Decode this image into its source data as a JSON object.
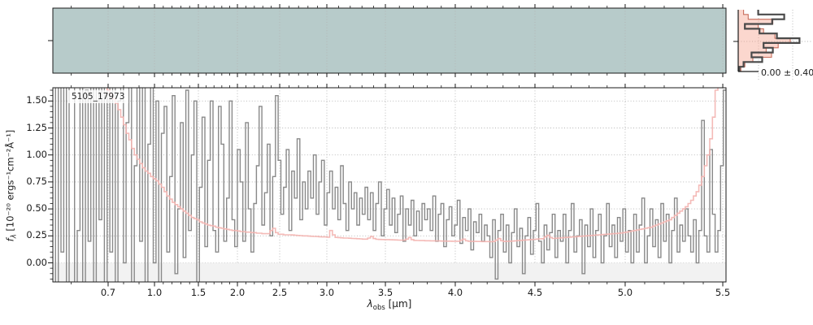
{
  "figure": {
    "annotation_id": "5105_17973",
    "hist_annotation": "0.00 ± 0.40",
    "xlabel": {
      "prefix": "λ",
      "sub": "obs",
      "unit": " [μm]"
    },
    "ylabel": {
      "prefix": "f",
      "sub": "λ",
      "rest": " [10⁻²⁰ ergs⁻¹cm⁻²Å⁻¹]"
    }
  },
  "colors": {
    "panel2d_background": "#b7cbca",
    "spectrum_gray": "#898989",
    "error_pink": "#f3b3af",
    "profile_dark": "#4a4a4a",
    "profile_fill": "#f6a692",
    "profile_outline": "#c2604e",
    "gridline": "#b3b3b3",
    "below_zero_shade": "#f2f2f2",
    "spine": "#1a1a1a"
  },
  "chart_data": [
    {
      "type": "heatmap",
      "name": "2d-spectrum-cutout",
      "description": "Rectified 2D spectrum noise image on teal background, grayscale speckle, higher contrast at blue end, faint dark trace band along center",
      "x_ticks": [
        0.7,
        1.0,
        1.5,
        2.0,
        2.5,
        3.0,
        3.5,
        4.0,
        4.5,
        5.0,
        5.5
      ],
      "grid": "dotted vertical at major ticks"
    },
    {
      "type": "line",
      "name": "1d-spectrum",
      "annotation": "5105_17973",
      "xlabel": "λ_obs [μm]",
      "ylabel": "f_λ [10^-20 ergs^-1 cm^-2 Å^-1]",
      "x_ticks": [
        0.7,
        1.0,
        1.5,
        2.0,
        2.5,
        3.0,
        3.5,
        4.0,
        4.5,
        5.0,
        5.5
      ],
      "x_tick_labels": [
        "0.7",
        "1.0",
        "1.5",
        "2.0",
        "2.5",
        "3.0",
        "3.5",
        "4.0",
        "4.5",
        "5.0",
        "5.5"
      ],
      "x_minor_step": 0.1,
      "y_ticks": [
        0.0,
        0.25,
        0.5,
        0.75,
        1.0,
        1.25,
        1.5
      ],
      "y_tick_labels": [
        "0.00",
        "0.25",
        "0.50",
        "0.75",
        "1.00",
        "1.25",
        "1.50"
      ],
      "y_minor_step": 0.05,
      "xlim": [
        0.55,
        5.52
      ],
      "ylim": [
        -0.18,
        1.62
      ],
      "grid": "dotted at major ticks",
      "x_scale_anchors": {
        "wavelength": [
          0.55,
          0.7,
          1.0,
          1.5,
          2.0,
          2.5,
          3.0,
          3.5,
          4.0,
          4.5,
          5.0,
          5.5,
          5.52
        ],
        "frac": [
          0,
          0.0821,
          0.151,
          0.2162,
          0.2742,
          0.337,
          0.407,
          0.494,
          0.5978,
          0.7162,
          0.8502,
          0.9952,
          1
        ]
      },
      "sampling": "248 samples uniform in detector-pixel fraction 0..1 across xlim (prism non-linear wavelength scale)",
      "series": [
        {
          "name": "observed-flux",
          "color": "#898989",
          "values": [
            1.9,
            -0.3,
            2.2,
            0.1,
            1.7,
            -0.2,
            2.0,
            1.8,
            -0.25,
            0.3,
            2.1,
            -0.3,
            1.6,
            0.2,
            1.9,
            -0.2,
            2.2,
            0.4,
            1.8,
            -0.3,
            2.0,
            0.1,
            1.8,
            -0.2,
            1.5,
            2.1,
            0.0,
            1.3,
            1.9,
            -0.3,
            0.9,
            1.7,
            0.2,
            2.0,
            -0.2,
            1.1,
            1.8,
            0.0,
            1.5,
            -0.25,
            1.2,
            1.45,
            0.1,
            0.8,
            1.55,
            -0.1,
            0.5,
            1.3,
            0.05,
            1.6,
            0.3,
            1.0,
            1.5,
            -0.2,
            0.7,
            1.35,
            0.15,
            0.95,
            1.5,
            0.3,
            0.1,
            1.45,
            1.1,
            0.2,
            0.6,
            1.5,
            0.4,
            0.15,
            1.05,
            0.75,
            0.2,
            1.3,
            0.5,
            0.1,
            0.55,
            0.9,
            1.45,
            0.35,
            0.65,
            1.1,
            0.25,
            0.8,
            1.55,
            0.95,
            0.45,
            0.7,
            1.05,
            0.3,
            0.85,
            0.6,
            1.15,
            0.4,
            0.75,
            0.5,
            0.85,
            0.6,
            1.0,
            0.45,
            0.75,
            0.95,
            0.35,
            0.65,
            0.85,
            0.5,
            0.7,
            0.4,
            0.9,
            0.55,
            0.3,
            0.75,
            0.5,
            0.65,
            0.35,
            0.6,
            0.45,
            0.7,
            0.4,
            0.65,
            0.3,
            0.55,
            0.75,
            0.25,
            0.5,
            0.68,
            0.35,
            0.6,
            0.28,
            0.45,
            0.62,
            0.2,
            0.5,
            0.35,
            0.58,
            0.25,
            0.48,
            0.3,
            0.55,
            0.4,
            0.5,
            0.3,
            0.62,
            0.2,
            0.45,
            0.55,
            0.15,
            0.4,
            0.52,
            0.25,
            0.35,
            0.58,
            0.18,
            0.42,
            0.3,
            0.5,
            0.12,
            0.38,
            0.28,
            0.45,
            0.2,
            0.35,
            0.25,
            0.05,
            0.4,
            -0.15,
            0.3,
            0.45,
            0.1,
            0.35,
            0.0,
            0.28,
            0.5,
            0.15,
            0.32,
            -0.1,
            0.25,
            0.42,
            0.08,
            0.3,
            0.55,
            0.2,
            0.0,
            0.35,
            0.12,
            0.28,
            0.45,
            0.05,
            0.3,
            0.2,
            0.45,
            0.0,
            0.3,
            0.55,
            0.1,
            0.25,
            0.4,
            -0.1,
            0.35,
            0.15,
            0.5,
            0.05,
            0.3,
            0.45,
            0.0,
            0.25,
            0.55,
            0.15,
            0.35,
            0.05,
            0.42,
            0.2,
            0.5,
            0.1,
            0.3,
            0.0,
            0.45,
            0.1,
            0.35,
            0.6,
            0.0,
            0.25,
            0.5,
            0.15,
            0.4,
            0.05,
            0.55,
            0.2,
            0.45,
            0.0,
            0.3,
            0.6,
            0.1,
            0.35,
            0.2,
            0.5,
            0.25,
            0.1,
            0.4,
            0.0,
            0.3,
            1.32,
            0.25,
            0.1,
            1.05,
            0.45,
            0.1,
            0.3,
            0.9,
            1.6
          ]
        },
        {
          "name": "error-curve",
          "color": "#f3b3af",
          "values": [
            3.0,
            3.0,
            3.0,
            3.0,
            3.0,
            3.0,
            3.0,
            3.0,
            3.0,
            2.8,
            2.6,
            2.45,
            2.3,
            2.15,
            2.0,
            1.9,
            1.82,
            1.75,
            1.7,
            1.66,
            1.6,
            1.56,
            1.52,
            1.48,
            1.42,
            1.35,
            1.28,
            1.2,
            1.14,
            1.06,
            1.0,
            0.96,
            0.92,
            0.88,
            0.85,
            0.83,
            0.8,
            0.78,
            0.76,
            0.73,
            0.7,
            0.66,
            0.62,
            0.59,
            0.56,
            0.54,
            0.52,
            0.5,
            0.48,
            0.46,
            0.44,
            0.42,
            0.41,
            0.4,
            0.38,
            0.37,
            0.36,
            0.35,
            0.345,
            0.34,
            0.33,
            0.325,
            0.32,
            0.315,
            0.31,
            0.305,
            0.3,
            0.3,
            0.295,
            0.29,
            0.29,
            0.285,
            0.285,
            0.28,
            0.28,
            0.275,
            0.275,
            0.27,
            0.27,
            0.27,
            0.3,
            0.32,
            0.28,
            0.265,
            0.265,
            0.26,
            0.26,
            0.26,
            0.258,
            0.256,
            0.254,
            0.252,
            0.25,
            0.25,
            0.248,
            0.246,
            0.245,
            0.244,
            0.242,
            0.24,
            0.24,
            0.238,
            0.3,
            0.26,
            0.236,
            0.234,
            0.232,
            0.23,
            0.23,
            0.228,
            0.226,
            0.225,
            0.224,
            0.222,
            0.22,
            0.22,
            0.23,
            0.245,
            0.225,
            0.218,
            0.217,
            0.216,
            0.215,
            0.215,
            0.214,
            0.213,
            0.212,
            0.211,
            0.21,
            0.21,
            0.22,
            0.235,
            0.215,
            0.208,
            0.207,
            0.206,
            0.206,
            0.205,
            0.205,
            0.204,
            0.204,
            0.203,
            0.203,
            0.202,
            0.202,
            0.201,
            0.201,
            0.2,
            0.2,
            0.2,
            0.21,
            0.22,
            0.205,
            0.2,
            0.199,
            0.199,
            0.198,
            0.198,
            0.197,
            0.197,
            0.197,
            0.196,
            0.198,
            0.21,
            0.225,
            0.205,
            0.198,
            0.2,
            0.2,
            0.202,
            0.204,
            0.206,
            0.208,
            0.21,
            0.212,
            0.214,
            0.216,
            0.218,
            0.22,
            0.222,
            0.224,
            0.24,
            0.255,
            0.235,
            0.226,
            0.228,
            0.23,
            0.232,
            0.234,
            0.236,
            0.238,
            0.24,
            0.242,
            0.244,
            0.246,
            0.248,
            0.25,
            0.252,
            0.254,
            0.256,
            0.258,
            0.26,
            0.262,
            0.264,
            0.266,
            0.268,
            0.27,
            0.272,
            0.274,
            0.276,
            0.28,
            0.285,
            0.29,
            0.295,
            0.3,
            0.305,
            0.31,
            0.315,
            0.32,
            0.325,
            0.33,
            0.34,
            0.35,
            0.36,
            0.37,
            0.38,
            0.39,
            0.4,
            0.42,
            0.44,
            0.46,
            0.48,
            0.5,
            0.52,
            0.55,
            0.58,
            0.62,
            0.66,
            0.72,
            0.8,
            0.9,
            1.0,
            1.15,
            1.35,
            1.6,
            2.0,
            2.6,
            3.2
          ]
        }
      ]
    },
    {
      "type": "bar",
      "name": "cross-dispersion-profile",
      "orientation": "horizontal",
      "label": "0.00 ± 0.40",
      "rows": 13,
      "series": [
        {
          "name": "profile-observed",
          "color": "#4a4a4a",
          "values": [
            0.3,
            0.69,
            0.51,
            0.1,
            0.32,
            0.58,
            0.92,
            0.38,
            0.52,
            0.2,
            0.36,
            0.08,
            0.02
          ]
        },
        {
          "name": "profile-model",
          "color": "#f6a692",
          "values": [
            0.08,
            0.15,
            0.52,
            0.3,
            0.38,
            0.55,
            0.78,
            0.6,
            0.42,
            0.5,
            0.22,
            0.1,
            0.04
          ]
        }
      ]
    }
  ]
}
